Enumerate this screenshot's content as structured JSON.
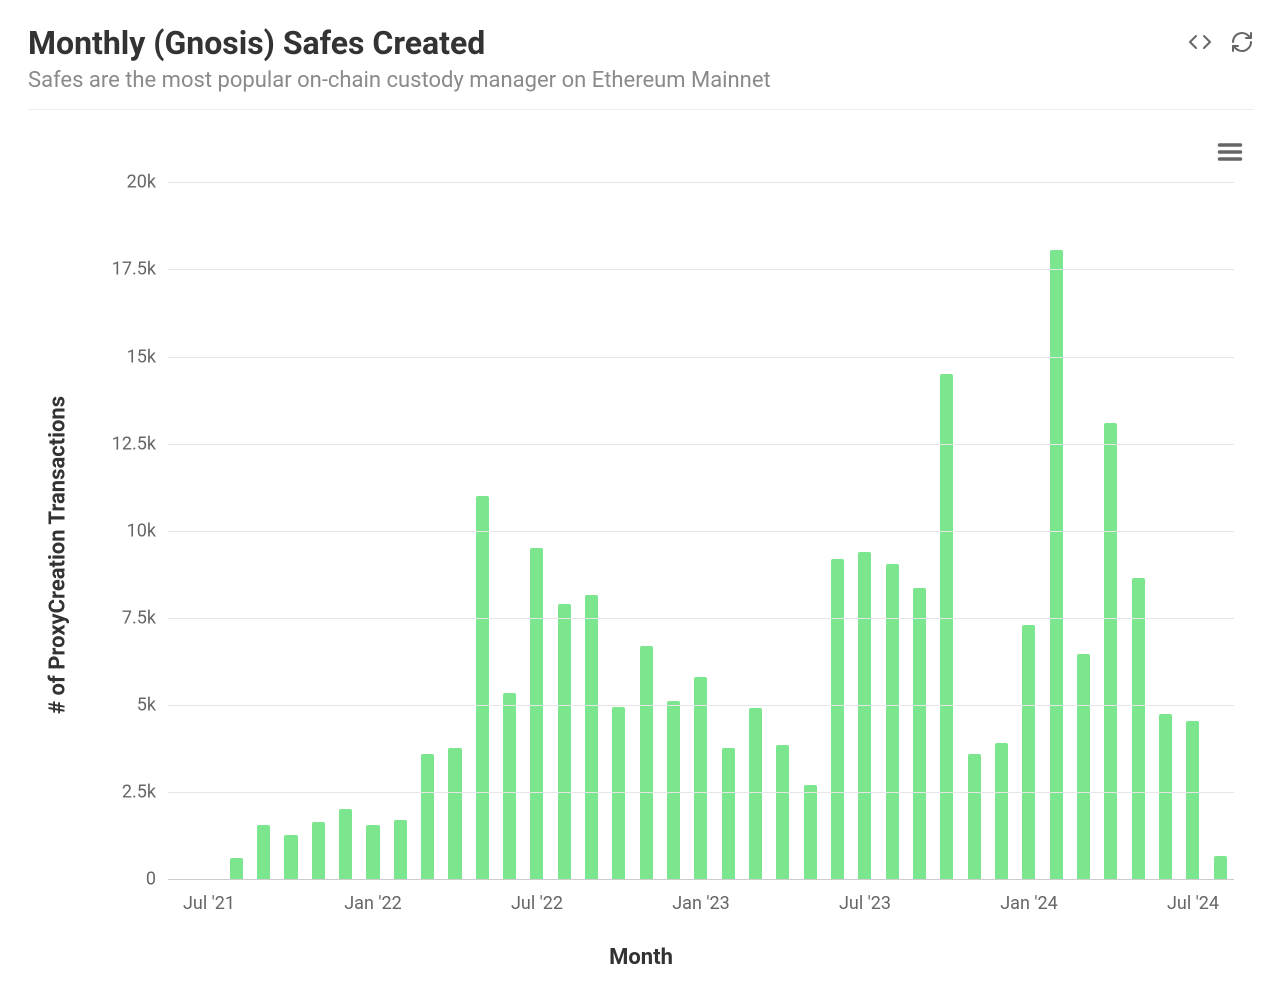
{
  "header": {
    "title": "Monthly (Gnosis) Safes Created",
    "subtitle": "Safes are the most popular on-chain custody manager on Ethereum Mainnet"
  },
  "chart": {
    "type": "bar",
    "x_axis_title": "Month",
    "y_axis_title": "# of ProxyCreation Transactions",
    "bar_color": "#7ce68e",
    "grid_color": "#e6e6e6",
    "axis_line_color": "#cccccc",
    "background_color": "#ffffff",
    "tick_label_color": "#666666",
    "tick_label_fontsize": 18,
    "axis_title_fontsize": 22,
    "ylim": [
      0,
      20500
    ],
    "yticks": [
      {
        "value": 0,
        "label": "0"
      },
      {
        "value": 2500,
        "label": "2.5k"
      },
      {
        "value": 5000,
        "label": "5k"
      },
      {
        "value": 7500,
        "label": "7.5k"
      },
      {
        "value": 10000,
        "label": "10k"
      },
      {
        "value": 12500,
        "label": "12.5k"
      },
      {
        "value": 15000,
        "label": "15k"
      },
      {
        "value": 17500,
        "label": "17.5k"
      },
      {
        "value": 20000,
        "label": "20k"
      }
    ],
    "xticks": [
      {
        "index": 1,
        "label": "Jul '21"
      },
      {
        "index": 7,
        "label": "Jan '22"
      },
      {
        "index": 13,
        "label": "Jul '22"
      },
      {
        "index": 19,
        "label": "Jan '23"
      },
      {
        "index": 25,
        "label": "Jul '23"
      },
      {
        "index": 31,
        "label": "Jan '24"
      },
      {
        "index": 37,
        "label": "Jul '24"
      }
    ],
    "categories": [
      "Jun '21",
      "Jul '21",
      "Aug '21",
      "Sep '21",
      "Oct '21",
      "Nov '21",
      "Dec '21",
      "Jan '22",
      "Feb '22",
      "Mar '22",
      "Apr '22",
      "May '22",
      "Jun '22",
      "Jul '22",
      "Aug '22",
      "Sep '22",
      "Oct '22",
      "Nov '22",
      "Dec '22",
      "Jan '23",
      "Feb '23",
      "Mar '23",
      "Apr '23",
      "May '23",
      "Jun '23",
      "Jul '23",
      "Aug '23",
      "Sep '23",
      "Oct '23",
      "Nov '23",
      "Dec '23",
      "Jan '24",
      "Feb '24",
      "Mar '24",
      "Apr '24",
      "May '24",
      "Jun '24",
      "Jul '24",
      "Aug '24"
    ],
    "values": [
      0,
      0,
      600,
      1550,
      1250,
      1650,
      2000,
      1550,
      1700,
      3600,
      3750,
      11000,
      5350,
      9500,
      7900,
      8150,
      4950,
      6700,
      5100,
      5800,
      3750,
      4900,
      3850,
      2700,
      9200,
      9400,
      9050,
      8350,
      14500,
      3600,
      3900,
      7300,
      18050,
      6450,
      13100,
      8650,
      4750,
      4550,
      650
    ],
    "bar_width_ratio": 0.48
  }
}
